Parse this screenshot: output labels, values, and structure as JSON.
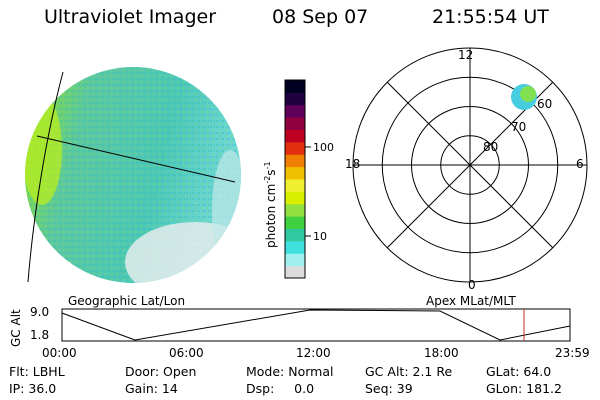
{
  "header": {
    "title": "Ultraviolet Imager",
    "date": "08 Sep 07",
    "time": "21:55:54 UT"
  },
  "colorbar": {
    "label": "photon cm",
    "label_sup": "-2",
    "label_s": "s",
    "label_sup2": "-1",
    "ticks": [
      {
        "value": 100,
        "label": "100"
      },
      {
        "value": 10,
        "label": "10"
      }
    ],
    "scale": "log",
    "colors": [
      "#dcdcdc",
      "#a0f0f0",
      "#40e0e0",
      "#30c8a0",
      "#40d040",
      "#90e040",
      "#d8f000",
      "#f0f030",
      "#f0c000",
      "#f08000",
      "#e03010",
      "#c00020",
      "#900040",
      "#60005a",
      "#200040",
      "#000020"
    ]
  },
  "polar": {
    "hour_labels": {
      "top": "12",
      "left": "18",
      "right": "6",
      "bottom": "0"
    },
    "lat_labels": [
      "80",
      "70",
      "60"
    ],
    "colors": {
      "grid": "#000000",
      "spot": "#38c8e8",
      "spot_core": "#78e040"
    }
  },
  "globe": {
    "colors": {
      "main": "#58c8a8",
      "limb": "#a8e838",
      "edge": "#c8e8e8",
      "shadow": "#9adcd8"
    }
  },
  "orbit": {
    "left_title": "Geographic Lat/Lon",
    "right_title": "Apex MLat/MLT",
    "axis_label": "GC Alt",
    "y_ticks": [
      "9.0",
      "1.8"
    ],
    "x_ticks": [
      "00:00",
      "06:00",
      "12:00",
      "18:00",
      "23:59"
    ],
    "marker_color": "#c03020"
  },
  "info": {
    "row1": [
      "Flt: LBHL",
      "Door: Open",
      "Mode: Normal",
      "GC Alt: 2.1 Re",
      "GLat:  64.0"
    ],
    "row2": [
      "IP: 36.0",
      "Gain: 14",
      "Dsp:     0.0",
      "Seq: 39",
      "GLon: 181.2"
    ]
  }
}
